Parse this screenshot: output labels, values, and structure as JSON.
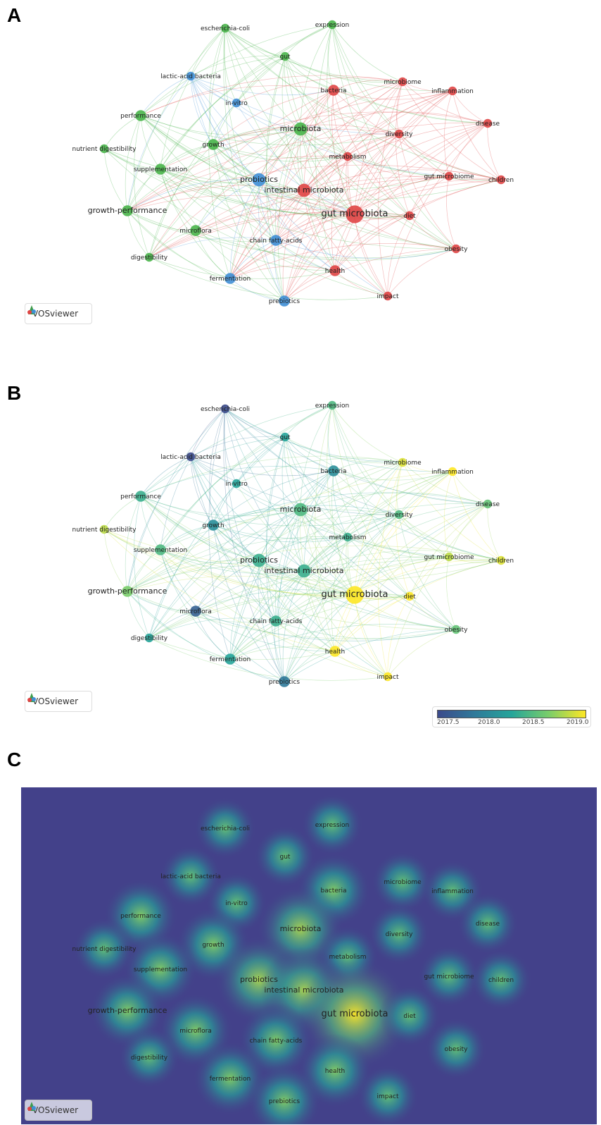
{
  "panels": {
    "a": {
      "letter": "A"
    },
    "b": {
      "letter": "B"
    },
    "c": {
      "letter": "C"
    }
  },
  "vosviewer": {
    "label": "VOSviewer"
  },
  "legend": {
    "ticks": [
      "2017.5",
      "2018.0",
      "2018.5",
      "2019.0"
    ]
  },
  "colors": {
    "cluster_red": "#e04545",
    "cluster_green": "#49b54a",
    "cluster_blue": "#3f8fd6",
    "heat_bg": "#43418a",
    "heat_peak": "#f6e91a"
  },
  "nodes": [
    {
      "id": "escherichia-coli",
      "label": "escherichia-coli",
      "cluster": "green",
      "year": 2017.3,
      "weight": 2
    },
    {
      "id": "expression",
      "label": "expression",
      "cluster": "green",
      "year": 2018.4,
      "weight": 2
    },
    {
      "id": "gut",
      "label": "gut",
      "cluster": "green",
      "year": 2018.2,
      "weight": 2
    },
    {
      "id": "lactic-acid-bacteria",
      "label": "lactic-acid bacteria",
      "cluster": "blue",
      "year": 2017.4,
      "weight": 2
    },
    {
      "id": "microbiome",
      "label": "microbiome",
      "cluster": "red",
      "year": 2018.9,
      "weight": 2
    },
    {
      "id": "bacteria",
      "label": "bacteria",
      "cluster": "red",
      "year": 2018.0,
      "weight": 3
    },
    {
      "id": "inflammation",
      "label": "inflammation",
      "cluster": "red",
      "year": 2019.0,
      "weight": 2
    },
    {
      "id": "in-vitro",
      "label": "in-vitro",
      "cluster": "blue",
      "year": 2018.2,
      "weight": 2
    },
    {
      "id": "disease",
      "label": "disease",
      "cluster": "red",
      "year": 2018.5,
      "weight": 2
    },
    {
      "id": "performance",
      "label": "performance",
      "cluster": "green",
      "year": 2018.3,
      "weight": 3
    },
    {
      "id": "microbiota",
      "label": "microbiota",
      "cluster": "green",
      "year": 2018.4,
      "weight": 4
    },
    {
      "id": "diversity",
      "label": "diversity",
      "cluster": "red",
      "year": 2018.4,
      "weight": 2
    },
    {
      "id": "nutrient-digestibility",
      "label": "nutrient digestibility",
      "cluster": "green",
      "year": 2018.8,
      "weight": 2
    },
    {
      "id": "growth",
      "label": "growth",
      "cluster": "green",
      "year": 2018.0,
      "weight": 3
    },
    {
      "id": "metabolism",
      "label": "metabolism",
      "cluster": "red",
      "year": 2018.3,
      "weight": 2
    },
    {
      "id": "supplementation",
      "label": "supplementation",
      "cluster": "green",
      "year": 2018.4,
      "weight": 3
    },
    {
      "id": "gut-microbiome",
      "label": "gut microbiome",
      "cluster": "red",
      "year": 2018.8,
      "weight": 2
    },
    {
      "id": "children",
      "label": "children",
      "cluster": "red",
      "year": 2018.9,
      "weight": 2
    },
    {
      "id": "probiotics",
      "label": "probiotics",
      "cluster": "blue",
      "year": 2018.3,
      "weight": 4
    },
    {
      "id": "intestinal-microbiota",
      "label": "intestinal microbiota",
      "cluster": "red",
      "year": 2018.3,
      "weight": 4
    },
    {
      "id": "gut-microbiota",
      "label": "gut microbiota",
      "cluster": "red",
      "year": 2019.0,
      "weight": 6
    },
    {
      "id": "diet",
      "label": "diet",
      "cluster": "red",
      "year": 2019.0,
      "weight": 2
    },
    {
      "id": "growth-performance",
      "label": "growth-performance",
      "cluster": "green",
      "year": 2018.6,
      "weight": 3
    },
    {
      "id": "microflora",
      "label": "microflora",
      "cluster": "green",
      "year": 2017.6,
      "weight": 3
    },
    {
      "id": "chain-fatty-acids",
      "label": "chain fatty-acids",
      "cluster": "blue",
      "year": 2018.3,
      "weight": 3
    },
    {
      "id": "digestibility",
      "label": "digestibility",
      "cluster": "green",
      "year": 2018.2,
      "weight": 2
    },
    {
      "id": "obesity",
      "label": "obesity",
      "cluster": "red",
      "year": 2018.5,
      "weight": 2
    },
    {
      "id": "health",
      "label": "health",
      "cluster": "red",
      "year": 2019.0,
      "weight": 3
    },
    {
      "id": "fermentation",
      "label": "fermentation",
      "cluster": "blue",
      "year": 2018.2,
      "weight": 3
    },
    {
      "id": "impact",
      "label": "impact",
      "cluster": "red",
      "year": 2019.0,
      "weight": 2
    },
    {
      "id": "prebiotics",
      "label": "prebiotics",
      "cluster": "blue",
      "year": 2017.8,
      "weight": 3
    }
  ]
}
